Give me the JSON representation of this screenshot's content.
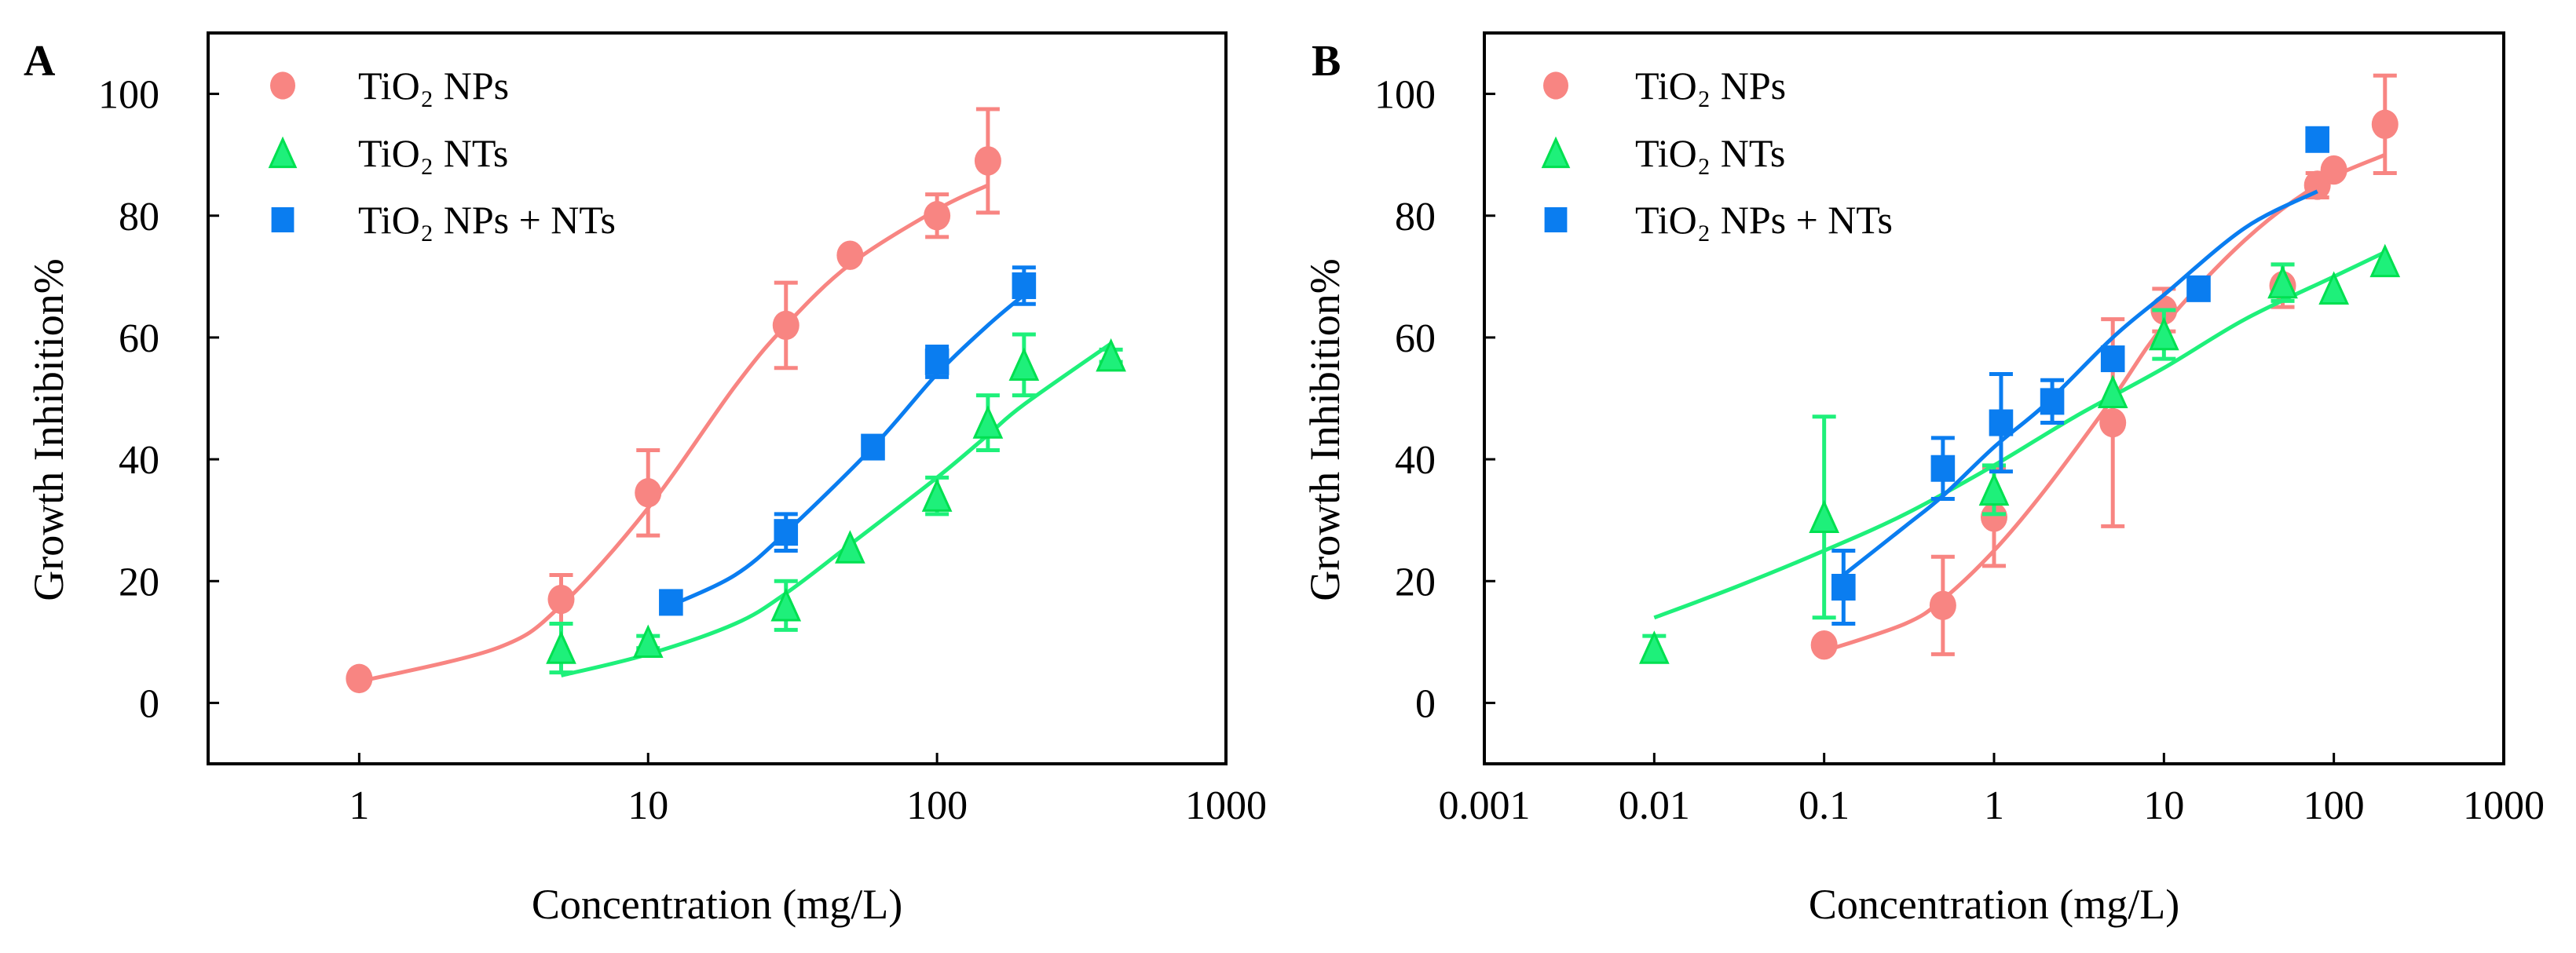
{
  "chart_data": [
    {
      "panel": "A",
      "type": "scatter",
      "xscale": "log",
      "xlim": [
        0.3,
        1000
      ],
      "ylim": [
        -10,
        110
      ],
      "xticks": [
        1,
        10,
        100,
        1000
      ],
      "xtick_labels": [
        "1",
        "10",
        "100",
        "1000"
      ],
      "yticks": [
        0,
        20,
        40,
        60,
        80,
        100
      ],
      "ytick_labels": [
        "0",
        "20",
        "40",
        "60",
        "80",
        "100"
      ],
      "xlabel": "Concentration (mg/L)",
      "ylabel": "Growth Inhibition%",
      "grid": false,
      "legend_position": "top-left",
      "series": [
        {
          "name": "TiO₂ NPs",
          "marker": "circle",
          "color": "#F88582",
          "points": [
            [
              1,
              4,
              0
            ],
            [
              5,
              17,
              4
            ],
            [
              10,
              34.5,
              7
            ],
            [
              30,
              62,
              7
            ],
            [
              50,
              73.5,
              0
            ],
            [
              100,
              80,
              3.5
            ],
            [
              150,
              89,
              8.5
            ]
          ],
          "fit": [
            [
              1,
              3.5
            ],
            [
              3,
              9
            ],
            [
              5,
              16
            ],
            [
              10,
              32
            ],
            [
              20,
              52
            ],
            [
              30,
              62
            ],
            [
              50,
              72
            ],
            [
              100,
              81
            ],
            [
              150,
              85
            ]
          ]
        },
        {
          "name": "TiO₂ NTs",
          "marker": "triangle",
          "color": "#1EF07A",
          "points": [
            [
              5,
              9,
              4
            ],
            [
              10,
              10,
              1
            ],
            [
              30,
              16,
              4
            ],
            [
              50,
              25.5,
              0
            ],
            [
              100,
              34,
              3
            ],
            [
              150,
              46,
              4.5
            ],
            [
              200,
              55.5,
              5
            ],
            [
              400,
              57,
              1
            ]
          ],
          "fit": [
            [
              5,
              4.5
            ],
            [
              10,
              8
            ],
            [
              20,
              13
            ],
            [
              30,
              18
            ],
            [
              50,
              26
            ],
            [
              100,
              37
            ],
            [
              150,
              44
            ],
            [
              200,
              49
            ],
            [
              400,
              59
            ]
          ]
        },
        {
          "name": "TiO₂ NPs + NTs",
          "marker": "square",
          "color": "#0A7DF0",
          "points": [
            [
              12,
              16.5,
              0
            ],
            [
              30,
              28,
              3
            ],
            [
              60,
              42,
              0
            ],
            [
              100,
              56,
              2.5
            ],
            [
              200,
              68.5,
              3
            ]
          ],
          "fit": [
            [
              12,
              16
            ],
            [
              20,
              21
            ],
            [
              30,
              28
            ],
            [
              60,
              42
            ],
            [
              100,
              54
            ],
            [
              150,
              62
            ],
            [
              200,
              67
            ]
          ]
        }
      ]
    },
    {
      "panel": "B",
      "type": "scatter",
      "xscale": "log",
      "xlim": [
        0.001,
        1000
      ],
      "ylim": [
        -10,
        110
      ],
      "xticks": [
        0.001,
        0.01,
        0.1,
        1,
        10,
        100,
        1000
      ],
      "xtick_labels": [
        "0.001",
        "0.01",
        "0.1",
        "1",
        "10",
        "100",
        "1000"
      ],
      "yticks": [
        0,
        20,
        40,
        60,
        80,
        100
      ],
      "ytick_labels": [
        "0",
        "20",
        "40",
        "60",
        "80",
        "100"
      ],
      "xlabel": "Concentration (mg/L)",
      "ylabel": "Growth Inhibition%",
      "grid": false,
      "legend_position": "top-left",
      "series": [
        {
          "name": "TiO₂ NPs",
          "marker": "circle",
          "color": "#F88582",
          "points": [
            [
              0.1,
              9.5,
              0
            ],
            [
              0.5,
              16,
              8
            ],
            [
              1,
              30.5,
              8
            ],
            [
              5,
              46,
              17
            ],
            [
              10,
              64.5,
              3.5
            ],
            [
              50,
              68.5,
              3.5
            ],
            [
              80,
              85,
              2
            ],
            [
              100,
              87.5,
              0
            ],
            [
              200,
              95,
              8
            ]
          ],
          "fit": [
            [
              0.1,
              8.5
            ],
            [
              0.3,
              13
            ],
            [
              0.5,
              17
            ],
            [
              1,
              25
            ],
            [
              2,
              35
            ],
            [
              5,
              50
            ],
            [
              10,
              62
            ],
            [
              30,
              76
            ],
            [
              80,
              85
            ],
            [
              200,
              90
            ]
          ]
        },
        {
          "name": "TiO₂ NTs",
          "marker": "triangle",
          "color": "#1EF07A",
          "points": [
            [
              0.01,
              9,
              2
            ],
            [
              0.1,
              30.5,
              16.5
            ],
            [
              1,
              35,
              4
            ],
            [
              5,
              51,
              0
            ],
            [
              10,
              60.5,
              4
            ],
            [
              50,
              69,
              3
            ],
            [
              100,
              68,
              0
            ],
            [
              200,
              72.5,
              0
            ]
          ],
          "fit": [
            [
              0.01,
              14
            ],
            [
              0.03,
              19
            ],
            [
              0.1,
              25
            ],
            [
              0.3,
              31
            ],
            [
              1,
              39
            ],
            [
              3,
              47
            ],
            [
              10,
              55
            ],
            [
              30,
              63
            ],
            [
              100,
              70
            ],
            [
              200,
              74
            ]
          ]
        },
        {
          "name": "TiO₂ NPs + NTs",
          "marker": "square",
          "color": "#0A7DF0",
          "points": [
            [
              0.13,
              19,
              6
            ],
            [
              0.5,
              38.5,
              5
            ],
            [
              1.1,
              46,
              8
            ],
            [
              2.2,
              49.5,
              3.5
            ],
            [
              5,
              56.5,
              0
            ],
            [
              16,
              68,
              0
            ],
            [
              80,
              92.5,
              0
            ]
          ],
          "fit": [
            [
              0.13,
              21
            ],
            [
              0.3,
              29
            ],
            [
              0.5,
              34
            ],
            [
              1,
              42
            ],
            [
              2,
              49
            ],
            [
              5,
              60
            ],
            [
              10,
              67
            ],
            [
              30,
              78
            ],
            [
              80,
              84
            ]
          ]
        }
      ]
    }
  ]
}
